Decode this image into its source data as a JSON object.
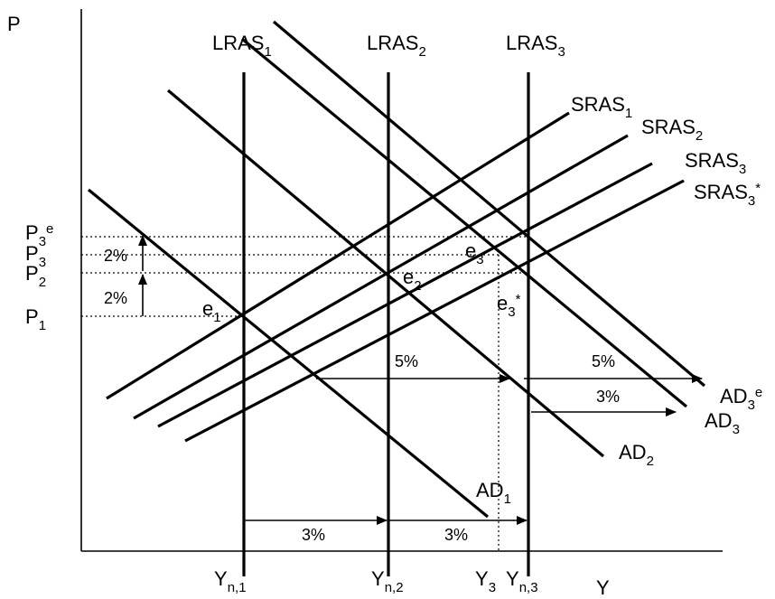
{
  "axes": {
    "y_label": "P",
    "x_label": "Y"
  },
  "lras": [
    {
      "main": "LRAS",
      "sub": "1"
    },
    {
      "main": "LRAS",
      "sub": "2"
    },
    {
      "main": "LRAS",
      "sub": "3"
    }
  ],
  "sras": [
    {
      "main": "SRAS",
      "sub": "1",
      "sup": ""
    },
    {
      "main": "SRAS",
      "sub": "2",
      "sup": ""
    },
    {
      "main": "SRAS",
      "sub": "3",
      "sup": ""
    },
    {
      "main": "SRAS",
      "sub": "3",
      "sup": "*"
    }
  ],
  "ad": [
    {
      "main": "AD",
      "sub": "1",
      "sup": ""
    },
    {
      "main": "AD",
      "sub": "2",
      "sup": ""
    },
    {
      "main": "AD",
      "sub": "3",
      "sup": ""
    },
    {
      "main": "AD",
      "sub": "3",
      "sup": "e"
    }
  ],
  "equilibria": [
    {
      "main": "e",
      "sub": "1",
      "sup": ""
    },
    {
      "main": "e",
      "sub": "2",
      "sup": ""
    },
    {
      "main": "e",
      "sub": "3",
      "sup": ""
    },
    {
      "main": "e",
      "sub": "3",
      "sup": "*"
    }
  ],
  "price_labels": [
    {
      "main": "P",
      "sub": "3",
      "sup": "e"
    },
    {
      "main": "P",
      "sub": "3",
      "sup": ""
    },
    {
      "main": "P",
      "sub": "2",
      "sup": ""
    },
    {
      "main": "P",
      "sub": "1",
      "sup": ""
    }
  ],
  "output_labels": [
    {
      "main": "Y",
      "sub": "n,1"
    },
    {
      "main": "Y",
      "sub": "n,2"
    },
    {
      "main": "Y",
      "sub": "3"
    },
    {
      "main": "Y",
      "sub": "n,3"
    }
  ],
  "changes": {
    "price_p1_p2": "2%",
    "price_p2_p3e": "2%",
    "output_n1_n2": "3%",
    "output_n2_n3": "3%",
    "ad_shift_5a": "5%",
    "ad_shift_5b": "5%",
    "ad_shift_3": "3%"
  }
}
